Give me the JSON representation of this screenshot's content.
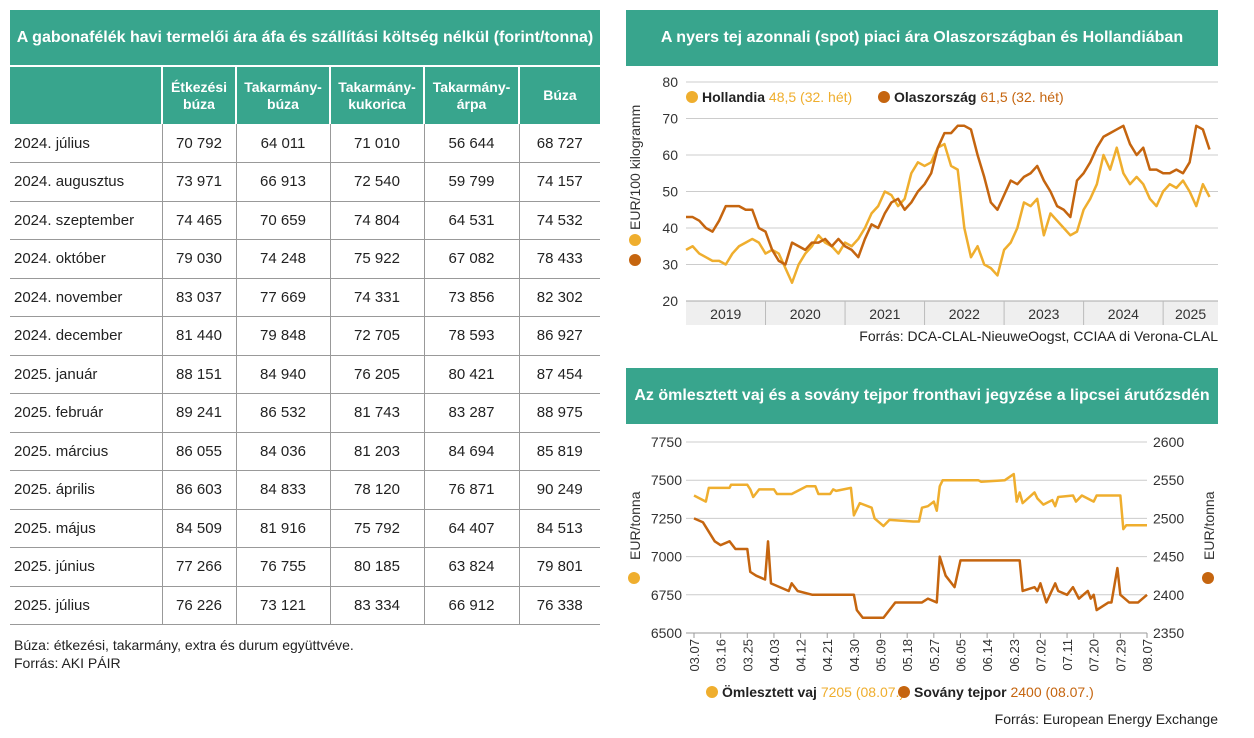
{
  "table": {
    "title": "A gabonafélék havi termelői ára áfa és szállítási költség nélkül (forint/tonna)",
    "headers": [
      "",
      "Étkezési búza",
      "Takarmány-búza",
      "Takarmány-kukorica",
      "Takarmány-árpa",
      "Búza"
    ],
    "rows": [
      [
        "2024. július",
        "70 792",
        "64 011",
        "71 010",
        "56 644",
        "68 727"
      ],
      [
        "2024. augusztus",
        "73 971",
        "66 913",
        "72 540",
        "59 799",
        "74 157"
      ],
      [
        "2024. szeptember",
        "74 465",
        "70 659",
        "74 804",
        "64 531",
        "74 532"
      ],
      [
        "2024. október",
        "79 030",
        "74 248",
        "75 922",
        "67 082",
        "78 433"
      ],
      [
        "2024. november",
        "83 037",
        "77 669",
        "74 331",
        "73 856",
        "82 302"
      ],
      [
        "2024. december",
        "81 440",
        "79 848",
        "72 705",
        "78 593",
        "86 927"
      ],
      [
        "2025. január",
        "88 151",
        "84 940",
        "76 205",
        "80 421",
        "87 454"
      ],
      [
        "2025. február",
        "89 241",
        "86 532",
        "81 743",
        "83 287",
        "88 975"
      ],
      [
        "2025. március",
        "86 055",
        "84 036",
        "81 203",
        "84 694",
        "85 819"
      ],
      [
        "2025. április",
        "86 603",
        "84 833",
        "78 120",
        "76 871",
        "90 249"
      ],
      [
        "2025. május",
        "84 509",
        "81 916",
        "75 792",
        "64 407",
        "84 513"
      ],
      [
        "2025. június",
        "77 266",
        "76 755",
        "80 185",
        "63 824",
        "79 801"
      ],
      [
        "2025. július",
        "76 226",
        "73 121",
        "83 334",
        "66 912",
        "76 338"
      ]
    ],
    "note1": "Búza: étkezési, takarmány, extra és durum együttvéve.",
    "note2": "Forrás: AKI PÁIR"
  },
  "colors": {
    "teal": "#38a58d",
    "light": "#efae2e",
    "dark": "#c5650f"
  },
  "chart_data": [
    {
      "type": "line",
      "title": "A nyers tej azonnali (spot) piaci ára Olaszországban és Hollandiában",
      "ylabel": "EUR/100 kilogramm",
      "ylim": [
        20,
        80
      ],
      "yticks": [
        20,
        30,
        40,
        50,
        60,
        70,
        80
      ],
      "xlim": [
        2019.0,
        2025.69
      ],
      "xticks": [
        "2019",
        "2020",
        "2021",
        "2022",
        "2023",
        "2024",
        "2025"
      ],
      "source": "Forrás: DCA-CLAL-NieuweOogst, CCIAA di Verona-CLAL",
      "x_start": 2019.0,
      "x_step_months": 1,
      "series": [
        {
          "name": "Hollandia",
          "legend_value": "48,5 (32. hét)",
          "color": "#efae2e",
          "values": [
            34,
            35,
            33,
            32,
            31,
            31,
            30,
            33,
            35,
            36,
            37,
            36,
            33,
            34,
            33,
            29,
            25,
            30,
            33,
            35,
            38,
            36,
            35,
            33,
            36,
            35,
            37,
            40,
            44,
            46,
            50,
            49,
            46,
            48,
            55,
            58,
            57,
            58,
            62,
            63,
            57,
            56,
            40,
            32,
            35,
            30,
            29,
            27,
            34,
            36,
            40,
            47,
            46,
            48,
            38,
            44,
            42,
            40,
            38,
            39,
            45,
            48,
            52,
            60,
            56,
            62,
            55,
            52,
            54,
            52,
            48,
            46,
            50,
            52,
            51,
            53,
            50,
            46,
            52,
            48.5
          ]
        },
        {
          "name": "Olaszország",
          "legend_value": "61,5 (32. hét)",
          "color": "#c5650f",
          "values": [
            43,
            43,
            42,
            40,
            39,
            42,
            46,
            46,
            46,
            45,
            45,
            40,
            39,
            34,
            31,
            30,
            36,
            35,
            34,
            36,
            36,
            37,
            35,
            37,
            35,
            34,
            32,
            37,
            41,
            40,
            44,
            47,
            48,
            45,
            47,
            50,
            52,
            55,
            62,
            66,
            66,
            68,
            68,
            67,
            60,
            54,
            47,
            45,
            49,
            53,
            52,
            54,
            55,
            57,
            53,
            50,
            46,
            45,
            43,
            53,
            55,
            58,
            62,
            65,
            66,
            67,
            68,
            63,
            60,
            62,
            56,
            56,
            55,
            55,
            56,
            55,
            58,
            68,
            67,
            61.5
          ]
        }
      ]
    },
    {
      "type": "line",
      "title": "Az ömlesztett vaj és a sovány tejpor fronthavi jegyzése a lipcsei árutőzsdén",
      "ylabel_left": "EUR/tonna",
      "ylabel_right": "EUR/tonna",
      "ylim_left": [
        6500,
        7750
      ],
      "yticks_left": [
        6500,
        6750,
        7000,
        7250,
        7500,
        7750
      ],
      "ylim_right": [
        2350,
        2600
      ],
      "yticks_right": [
        2350,
        2400,
        2450,
        2500,
        2550,
        2600
      ],
      "xticks": [
        "03.07",
        "03.16",
        "03.25",
        "04.03",
        "04.12",
        "04.21",
        "04.30",
        "05.09",
        "05.18",
        "05.27",
        "06.05",
        "06.14",
        "06.23",
        "07.02",
        "07.11",
        "07.20",
        "07.29",
        "08.07"
      ],
      "x_unit": "days since 03.07",
      "xlim": [
        0,
        153
      ],
      "source": "Forrás: European Energy Exchange",
      "series": [
        {
          "name": "Ömlesztett vaj",
          "legend_value": "7205 (08.07.)",
          "axis": "left",
          "color": "#efae2e",
          "points": [
            [
              0,
              7400
            ],
            [
              4,
              7360
            ],
            [
              5,
              7450
            ],
            [
              12,
              7450
            ],
            [
              12.5,
              7470
            ],
            [
              18,
              7470
            ],
            [
              19,
              7440
            ],
            [
              20,
              7390
            ],
            [
              22,
              7440
            ],
            [
              27,
              7440
            ],
            [
              28,
              7410
            ],
            [
              33,
              7410
            ],
            [
              36,
              7440
            ],
            [
              38,
              7460
            ],
            [
              41,
              7460
            ],
            [
              42,
              7410
            ],
            [
              46,
              7410
            ],
            [
              47,
              7440
            ],
            [
              48,
              7430
            ],
            [
              53,
              7450
            ],
            [
              54,
              7270
            ],
            [
              56,
              7350
            ],
            [
              60,
              7320
            ],
            [
              61,
              7250
            ],
            [
              64,
              7200
            ],
            [
              66,
              7240
            ],
            [
              74,
              7230
            ],
            [
              76,
              7230
            ],
            [
              77,
              7320
            ],
            [
              79,
              7330
            ],
            [
              81,
              7360
            ],
            [
              82,
              7300
            ],
            [
              83,
              7460
            ],
            [
              84,
              7500
            ],
            [
              96,
              7500
            ],
            [
              97,
              7490
            ],
            [
              105,
              7500
            ],
            [
              108,
              7540
            ],
            [
              109,
              7360
            ],
            [
              110,
              7420
            ],
            [
              111,
              7350
            ],
            [
              115,
              7420
            ],
            [
              116,
              7380
            ],
            [
              118,
              7340
            ],
            [
              121,
              7370
            ],
            [
              122,
              7330
            ],
            [
              123,
              7390
            ],
            [
              128,
              7400
            ],
            [
              129,
              7360
            ],
            [
              131,
              7400
            ],
            [
              135,
              7360
            ],
            [
              136,
              7400
            ],
            [
              144,
              7400
            ],
            [
              145,
              7180
            ],
            [
              146,
              7205
            ],
            [
              153,
              7205
            ]
          ]
        },
        {
          "name": "Sovány tejpor",
          "legend_value": "2400 (08.07.)",
          "axis": "right",
          "color": "#c5650f",
          "points": [
            [
              0,
              2500
            ],
            [
              3,
              2495
            ],
            [
              7,
              2470
            ],
            [
              9,
              2465
            ],
            [
              12,
              2470
            ],
            [
              14,
              2460
            ],
            [
              18,
              2460
            ],
            [
              19,
              2430
            ],
            [
              21,
              2425
            ],
            [
              24,
              2420
            ],
            [
              25,
              2470
            ],
            [
              26,
              2415
            ],
            [
              32,
              2405
            ],
            [
              33,
              2415
            ],
            [
              35,
              2405
            ],
            [
              40,
              2400
            ],
            [
              54,
              2400
            ],
            [
              55,
              2380
            ],
            [
              57,
              2370
            ],
            [
              64,
              2370
            ],
            [
              67,
              2385
            ],
            [
              68,
              2390
            ],
            [
              77,
              2390
            ],
            [
              79,
              2395
            ],
            [
              82,
              2390
            ],
            [
              83,
              2450
            ],
            [
              85,
              2425
            ],
            [
              88,
              2410
            ],
            [
              90,
              2445
            ],
            [
              110,
              2445
            ],
            [
              111,
              2405
            ],
            [
              115,
              2410
            ],
            [
              116,
              2405
            ],
            [
              117,
              2415
            ],
            [
              119,
              2390
            ],
            [
              122,
              2415
            ],
            [
              123,
              2405
            ],
            [
              126,
              2400
            ],
            [
              128,
              2410
            ],
            [
              130,
              2395
            ],
            [
              133,
              2405
            ],
            [
              134,
              2395
            ],
            [
              135,
              2400
            ],
            [
              136,
              2380
            ],
            [
              140,
              2390
            ],
            [
              141,
              2390
            ],
            [
              143,
              2435
            ],
            [
              144,
              2400
            ],
            [
              147,
              2390
            ],
            [
              150,
              2390
            ],
            [
              153,
              2400
            ]
          ]
        }
      ]
    }
  ]
}
